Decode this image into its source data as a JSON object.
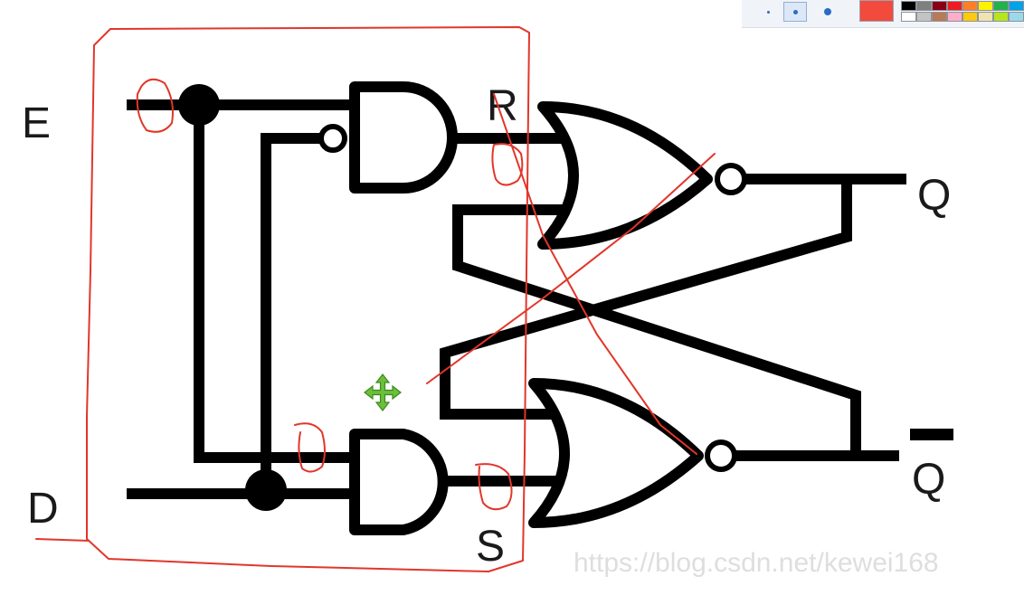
{
  "diagram": {
    "labels": {
      "e": "E",
      "d": "D",
      "r": "R",
      "s": "S",
      "q": "Q",
      "q_bar": "Q"
    },
    "annotations": {
      "top_zero": "0",
      "bottom_zero": "0",
      "r_zero": "0",
      "s_zero": "0"
    },
    "watermark": "https://blog.csdn.net/kewei168",
    "colors": {
      "wire": "#000000",
      "annotation": "#e2362a",
      "move_cursor": "#6cbf3a"
    }
  },
  "toolbar": {
    "brush_sizes": [
      "small",
      "medium",
      "large"
    ],
    "selected_brush": "medium",
    "current_color": "#f24a3d",
    "palette_top": [
      "#000000",
      "#7f7f7f",
      "#880015",
      "#ed1c24",
      "#ff7f27",
      "#fff200",
      "#22b14c",
      "#00a2e8"
    ],
    "palette_bottom": [
      "#ffffff",
      "#c3c3c3",
      "#b97a57",
      "#ffaec9",
      "#ffc90e",
      "#efe4b0",
      "#b5e61d",
      "#99d9ea"
    ]
  },
  "cursor": {
    "icon": "move-icon"
  }
}
